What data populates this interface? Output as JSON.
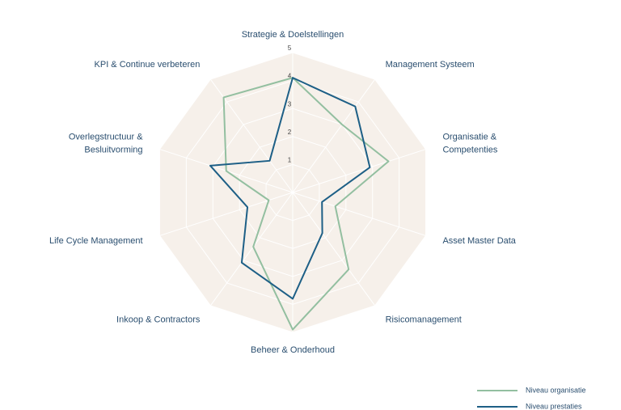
{
  "chart_data": {
    "type": "radar",
    "categories": [
      [
        "Strategie & Doelstellingen"
      ],
      [
        "Management Systeem"
      ],
      [
        "Organisatie &",
        "Competenties"
      ],
      [
        "Asset Master Data"
      ],
      [
        "Risicomanagement"
      ],
      [
        "Beheer & Onderhoud"
      ],
      [
        "Inkoop & Contractors"
      ],
      [
        "Life Cycle Management"
      ],
      [
        "Overlegstructuur &",
        "Besluitvorming"
      ],
      [
        "KPI & Continue verbeteren"
      ]
    ],
    "series": [
      {
        "name": "Niveau organisatie",
        "color": "#93bfa0",
        "values": [
          4.1,
          3.0,
          3.6,
          1.6,
          3.4,
          4.9,
          2.4,
          0.9,
          2.5,
          4.2
        ]
      },
      {
        "name": "Niveau prestaties",
        "color": "#1d5f86",
        "values": [
          4.1,
          3.8,
          2.9,
          1.1,
          1.8,
          3.8,
          3.1,
          1.7,
          3.1,
          1.4
        ]
      }
    ],
    "ylim": [
      0,
      5
    ],
    "yticks": [
      1,
      2,
      3,
      4,
      5
    ],
    "grid": true,
    "legend": "bottom-right"
  }
}
